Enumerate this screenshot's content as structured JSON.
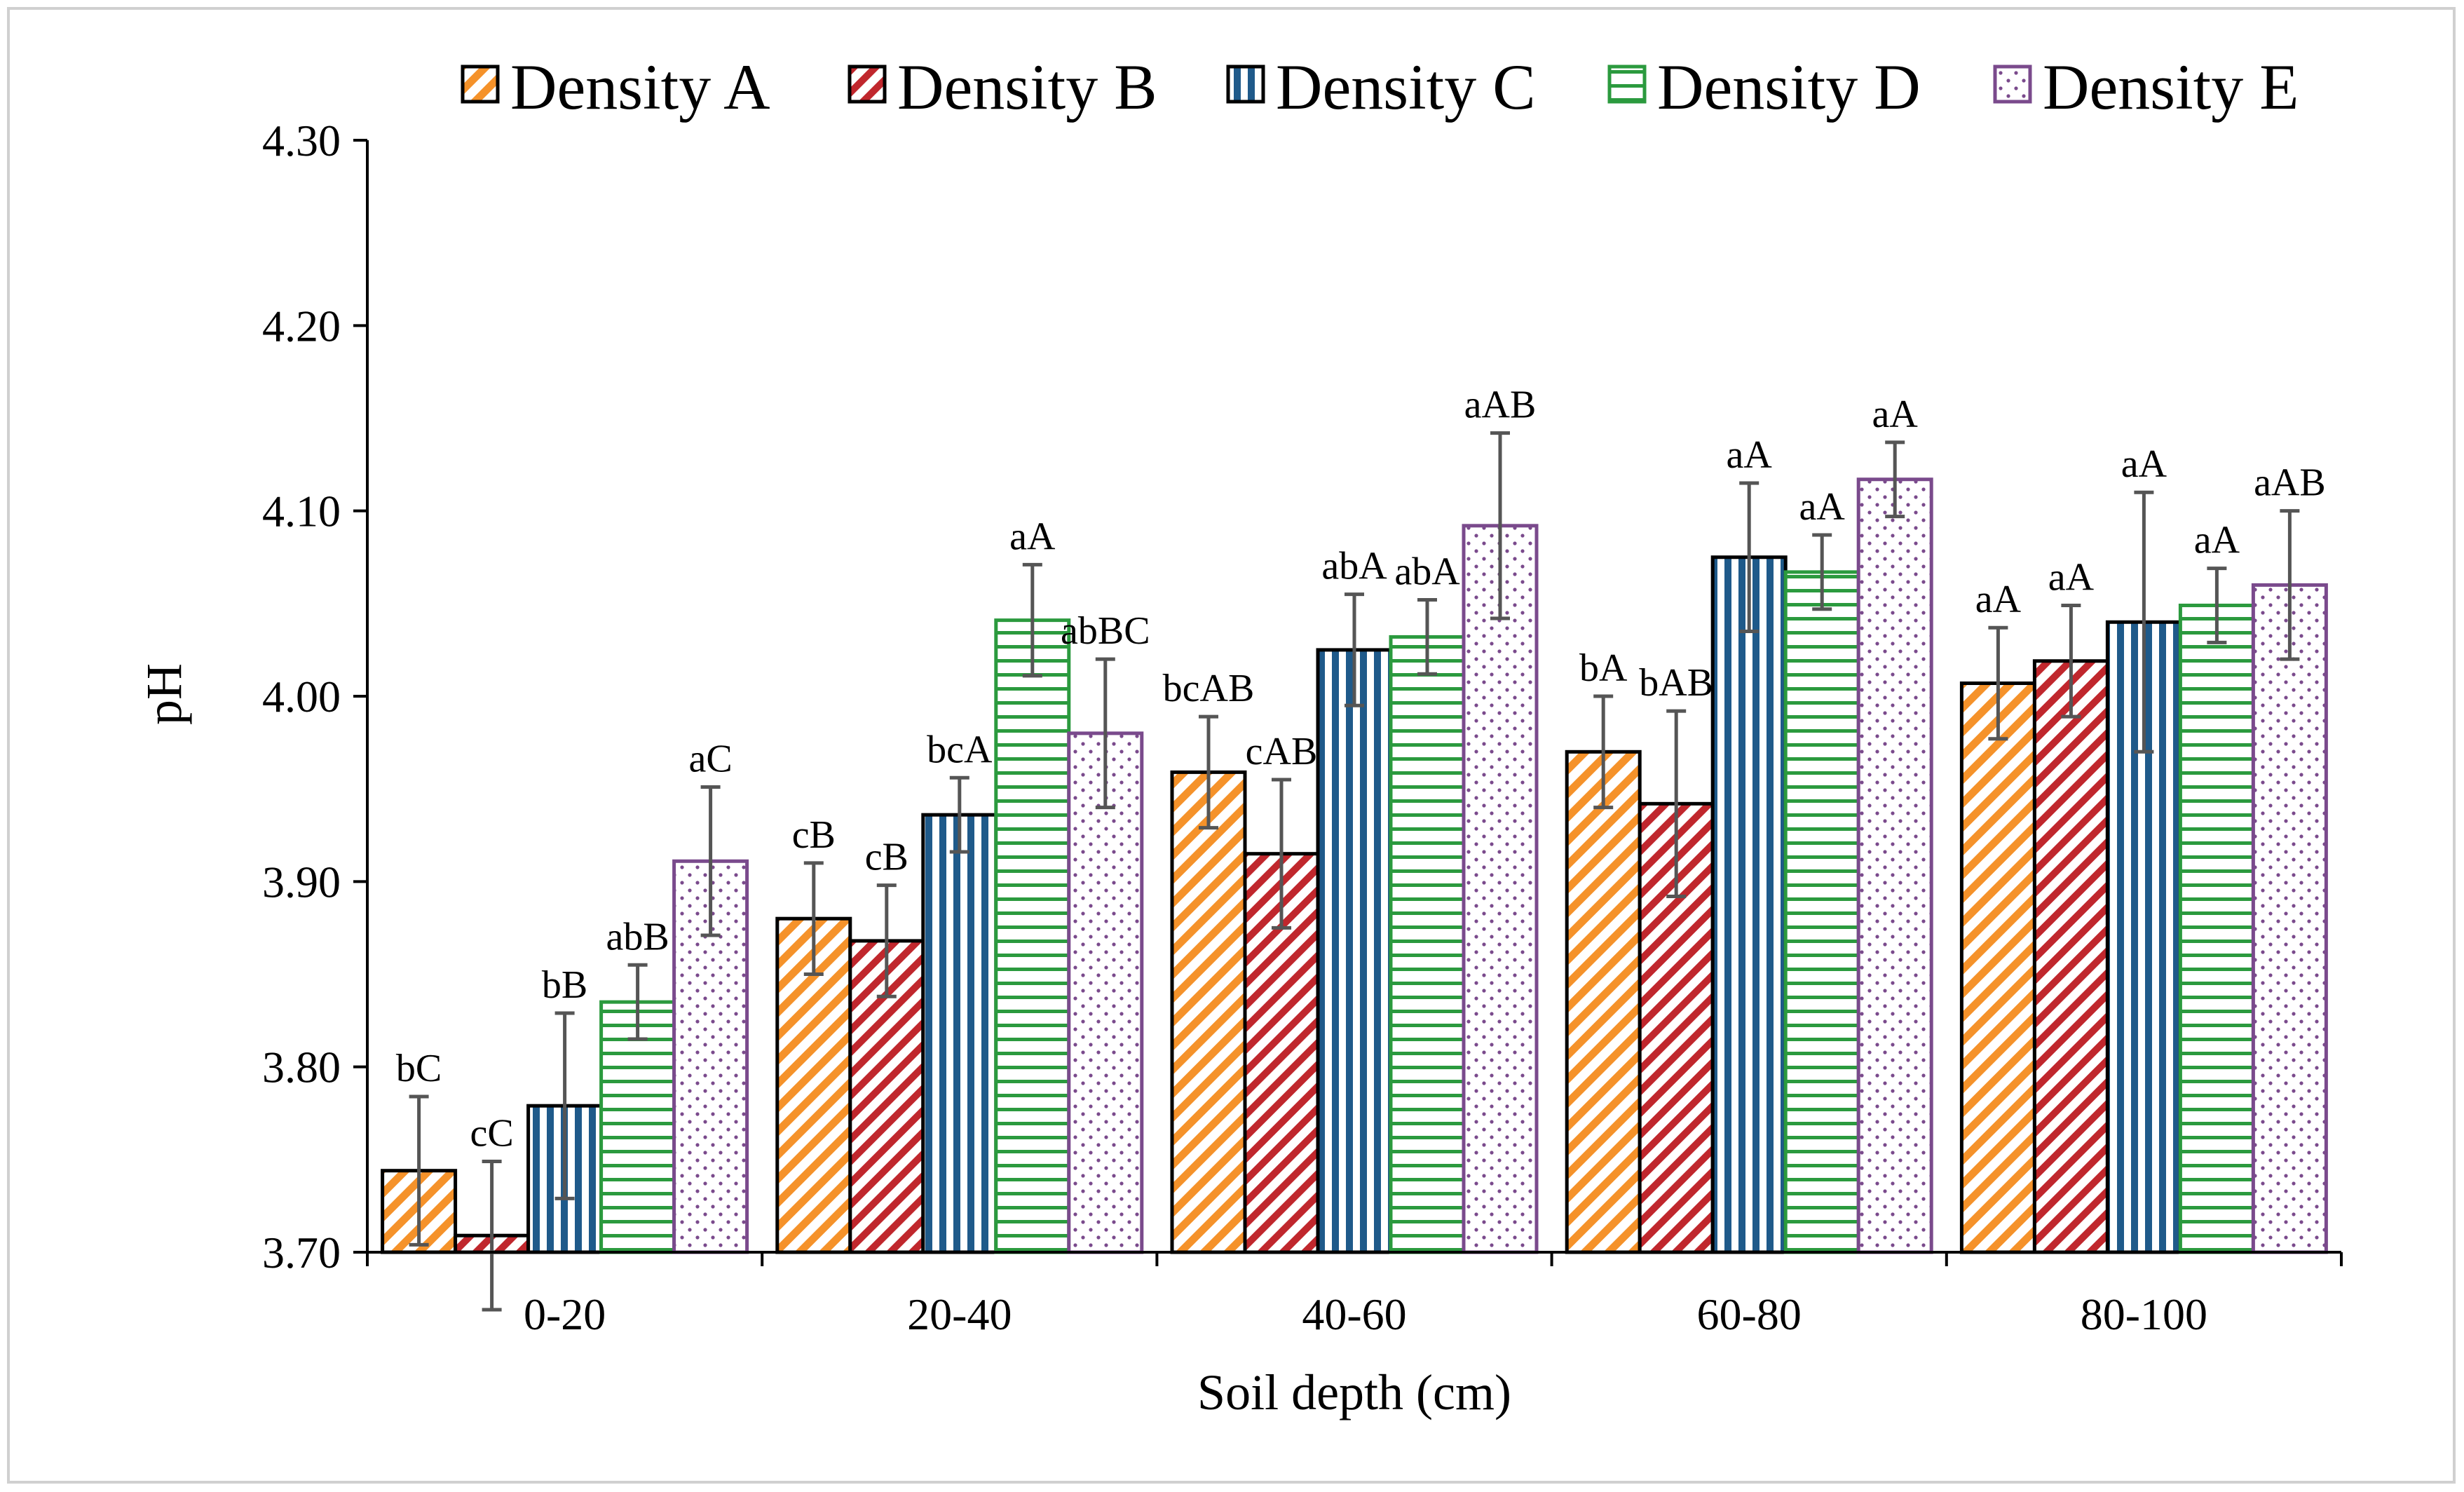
{
  "chart_data": {
    "type": "bar",
    "xlabel": "Soil depth (cm)",
    "ylabel": "pH",
    "ylim": [
      3.7,
      4.3
    ],
    "yticks": [
      "3.70",
      "3.80",
      "3.90",
      "4.00",
      "4.10",
      "4.20",
      "4.30"
    ],
    "grid": false,
    "legend_position": "top",
    "categories": [
      "0-20",
      "20-40",
      "40-60",
      "60-80",
      "80-100"
    ],
    "series": [
      {
        "name": "Density A",
        "values": [
          3.744,
          3.88,
          3.959,
          3.97,
          4.007
        ],
        "errors": [
          0.04,
          0.03,
          0.03,
          0.03,
          0.03
        ],
        "labels": [
          "bC",
          "cB",
          "bcAB",
          "bA",
          "aA"
        ],
        "color": "#f5922a",
        "pattern": "diagonal-stripes"
      },
      {
        "name": "Density B",
        "values": [
          3.709,
          3.868,
          3.915,
          3.942,
          4.019
        ],
        "errors": [
          0.04,
          0.03,
          0.04,
          0.05,
          0.03
        ],
        "labels": [
          "cC",
          "cB",
          "cAB",
          "bAB",
          "aA"
        ],
        "color": "#c0272d",
        "pattern": "diagonal-stripes"
      },
      {
        "name": "Density C",
        "values": [
          3.779,
          3.936,
          4.025,
          4.075,
          4.04
        ],
        "errors": [
          0.05,
          0.02,
          0.03,
          0.04,
          0.07
        ],
        "labels": [
          "bB",
          "bcA",
          "abA",
          "aA",
          "aA"
        ],
        "color": "#1f5a8a",
        "pattern": "vertical-stripes"
      },
      {
        "name": "Density D",
        "values": [
          3.835,
          4.041,
          4.032,
          4.067,
          4.049
        ],
        "errors": [
          0.02,
          0.03,
          0.02,
          0.02,
          0.02
        ],
        "labels": [
          "abB",
          "aA",
          "abA",
          "aA",
          "aA"
        ],
        "color": "#2b9a3e",
        "pattern": "horizontal-stripes"
      },
      {
        "name": "Density E",
        "values": [
          3.911,
          3.98,
          4.092,
          4.117,
          4.06
        ],
        "errors": [
          0.04,
          0.04,
          0.05,
          0.02,
          0.04
        ],
        "labels": [
          "aC",
          "abBC",
          "aAB",
          "aA",
          "aAB"
        ],
        "color": "#7a4a8c",
        "pattern": "dots"
      }
    ]
  }
}
